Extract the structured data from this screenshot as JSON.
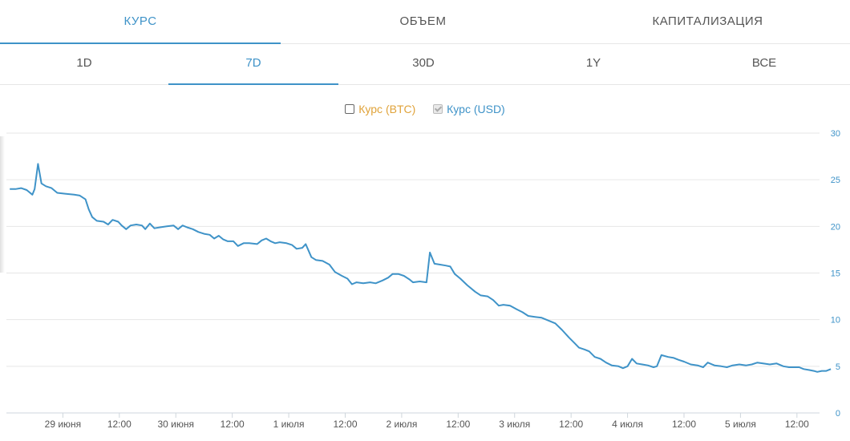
{
  "tabs": [
    {
      "label": "КУРС",
      "active": true
    },
    {
      "label": "ОБЪЕМ",
      "active": false
    },
    {
      "label": "КАПИТАЛИЗАЦИЯ",
      "active": false
    }
  ],
  "ranges": [
    {
      "label": "1D",
      "active": false
    },
    {
      "label": "7D",
      "active": true
    },
    {
      "label": "30D",
      "active": false
    },
    {
      "label": "1Y",
      "active": false
    },
    {
      "label": "ВСЕ",
      "active": false
    }
  ],
  "legend": {
    "btc": {
      "label": "Курс (BTC)",
      "checked": false,
      "color": "#e0a33a"
    },
    "usd": {
      "label": "Курс (USD)",
      "checked": true,
      "color": "#3f93c8"
    }
  },
  "chart_data": {
    "type": "line",
    "title": "",
    "xlabel": "",
    "ylabel": "",
    "ylim": [
      0,
      30
    ],
    "y_ticks": [
      0,
      5,
      10,
      15,
      20,
      25,
      30
    ],
    "y_axis_side": "right",
    "grid": true,
    "x_range_days": [
      0,
      7.2
    ],
    "x_ticks": [
      {
        "day": 0.5,
        "label": "29 июня"
      },
      {
        "day": 1.0,
        "label": "12:00"
      },
      {
        "day": 1.5,
        "label": "30 июня"
      },
      {
        "day": 2.0,
        "label": "12:00"
      },
      {
        "day": 2.5,
        "label": "1 июля"
      },
      {
        "day": 3.0,
        "label": "12:00"
      },
      {
        "day": 3.5,
        "label": "2 июля"
      },
      {
        "day": 4.0,
        "label": "12:00"
      },
      {
        "day": 4.5,
        "label": "3 июля"
      },
      {
        "day": 5.0,
        "label": "12:00"
      },
      {
        "day": 5.5,
        "label": "4 июля"
      },
      {
        "day": 6.0,
        "label": "12:00"
      },
      {
        "day": 6.5,
        "label": "5 июля"
      },
      {
        "day": 7.0,
        "label": "12:00"
      }
    ],
    "series": [
      {
        "color": "#3f93c8",
        "points": [
          [
            0.03,
            24.0
          ],
          [
            0.08,
            24.0
          ],
          [
            0.13,
            24.1
          ],
          [
            0.18,
            23.9
          ],
          [
            0.23,
            23.4
          ],
          [
            0.25,
            24.0
          ],
          [
            0.28,
            26.7
          ],
          [
            0.31,
            24.6
          ],
          [
            0.35,
            24.3
          ],
          [
            0.4,
            24.1
          ],
          [
            0.45,
            23.6
          ],
          [
            0.52,
            23.5
          ],
          [
            0.6,
            23.4
          ],
          [
            0.65,
            23.3
          ],
          [
            0.7,
            22.9
          ],
          [
            0.73,
            21.8
          ],
          [
            0.76,
            21.0
          ],
          [
            0.8,
            20.6
          ],
          [
            0.86,
            20.5
          ],
          [
            0.9,
            20.2
          ],
          [
            0.94,
            20.7
          ],
          [
            0.99,
            20.5
          ],
          [
            1.02,
            20.1
          ],
          [
            1.06,
            19.7
          ],
          [
            1.1,
            20.1
          ],
          [
            1.15,
            20.2
          ],
          [
            1.2,
            20.1
          ],
          [
            1.23,
            19.7
          ],
          [
            1.27,
            20.3
          ],
          [
            1.31,
            19.8
          ],
          [
            1.36,
            19.9
          ],
          [
            1.42,
            20.0
          ],
          [
            1.48,
            20.1
          ],
          [
            1.52,
            19.7
          ],
          [
            1.56,
            20.1
          ],
          [
            1.6,
            19.9
          ],
          [
            1.65,
            19.7
          ],
          [
            1.7,
            19.4
          ],
          [
            1.75,
            19.2
          ],
          [
            1.8,
            19.1
          ],
          [
            1.84,
            18.7
          ],
          [
            1.88,
            19.0
          ],
          [
            1.92,
            18.6
          ],
          [
            1.96,
            18.4
          ],
          [
            2.01,
            18.4
          ],
          [
            2.05,
            17.9
          ],
          [
            2.1,
            18.2
          ],
          [
            2.15,
            18.2
          ],
          [
            2.22,
            18.1
          ],
          [
            2.26,
            18.5
          ],
          [
            2.3,
            18.7
          ],
          [
            2.34,
            18.4
          ],
          [
            2.38,
            18.2
          ],
          [
            2.42,
            18.3
          ],
          [
            2.48,
            18.2
          ],
          [
            2.53,
            18.0
          ],
          [
            2.57,
            17.6
          ],
          [
            2.62,
            17.7
          ],
          [
            2.65,
            18.1
          ],
          [
            2.7,
            16.7
          ],
          [
            2.74,
            16.4
          ],
          [
            2.8,
            16.3
          ],
          [
            2.86,
            15.9
          ],
          [
            2.91,
            15.1
          ],
          [
            2.97,
            14.7
          ],
          [
            3.02,
            14.4
          ],
          [
            3.06,
            13.8
          ],
          [
            3.1,
            14.0
          ],
          [
            3.16,
            13.9
          ],
          [
            3.22,
            14.0
          ],
          [
            3.27,
            13.9
          ],
          [
            3.33,
            14.2
          ],
          [
            3.38,
            14.5
          ],
          [
            3.42,
            14.9
          ],
          [
            3.47,
            14.9
          ],
          [
            3.52,
            14.7
          ],
          [
            3.57,
            14.3
          ],
          [
            3.6,
            14.0
          ],
          [
            3.66,
            14.1
          ],
          [
            3.72,
            14.0
          ],
          [
            3.75,
            17.2
          ],
          [
            3.79,
            16.0
          ],
          [
            3.84,
            15.9
          ],
          [
            3.89,
            15.8
          ],
          [
            3.93,
            15.7
          ],
          [
            3.97,
            14.9
          ],
          [
            4.02,
            14.4
          ],
          [
            4.08,
            13.7
          ],
          [
            4.15,
            13.0
          ],
          [
            4.2,
            12.6
          ],
          [
            4.26,
            12.5
          ],
          [
            4.31,
            12.1
          ],
          [
            4.36,
            11.5
          ],
          [
            4.4,
            11.6
          ],
          [
            4.46,
            11.5
          ],
          [
            4.52,
            11.1
          ],
          [
            4.57,
            10.8
          ],
          [
            4.62,
            10.4
          ],
          [
            4.68,
            10.3
          ],
          [
            4.74,
            10.2
          ],
          [
            4.8,
            9.9
          ],
          [
            4.86,
            9.6
          ],
          [
            4.92,
            8.9
          ],
          [
            4.98,
            8.1
          ],
          [
            5.03,
            7.5
          ],
          [
            5.07,
            7.0
          ],
          [
            5.12,
            6.8
          ],
          [
            5.16,
            6.6
          ],
          [
            5.21,
            6.0
          ],
          [
            5.26,
            5.8
          ],
          [
            5.31,
            5.4
          ],
          [
            5.36,
            5.1
          ],
          [
            5.42,
            5.0
          ],
          [
            5.46,
            4.8
          ],
          [
            5.5,
            5.0
          ],
          [
            5.54,
            5.8
          ],
          [
            5.58,
            5.3
          ],
          [
            5.63,
            5.2
          ],
          [
            5.68,
            5.1
          ],
          [
            5.73,
            4.9
          ],
          [
            5.76,
            5.0
          ],
          [
            5.8,
            6.2
          ],
          [
            5.86,
            6.0
          ],
          [
            5.91,
            5.9
          ],
          [
            5.95,
            5.7
          ],
          [
            6.0,
            5.5
          ],
          [
            6.06,
            5.2
          ],
          [
            6.12,
            5.1
          ],
          [
            6.17,
            4.9
          ],
          [
            6.21,
            5.4
          ],
          [
            6.27,
            5.1
          ],
          [
            6.33,
            5.0
          ],
          [
            6.38,
            4.9
          ],
          [
            6.43,
            5.1
          ],
          [
            6.49,
            5.2
          ],
          [
            6.55,
            5.1
          ],
          [
            6.6,
            5.2
          ],
          [
            6.65,
            5.4
          ],
          [
            6.7,
            5.3
          ],
          [
            6.76,
            5.2
          ],
          [
            6.82,
            5.3
          ],
          [
            6.88,
            5.0
          ],
          [
            6.93,
            4.9
          ],
          [
            6.98,
            4.9
          ],
          [
            7.02,
            4.9
          ],
          [
            7.06,
            4.7
          ],
          [
            7.11,
            4.6
          ],
          [
            7.15,
            4.5
          ],
          [
            7.18,
            4.4
          ],
          [
            7.22,
            4.5
          ],
          [
            7.26,
            4.5
          ],
          [
            7.3,
            4.7
          ]
        ]
      }
    ]
  }
}
